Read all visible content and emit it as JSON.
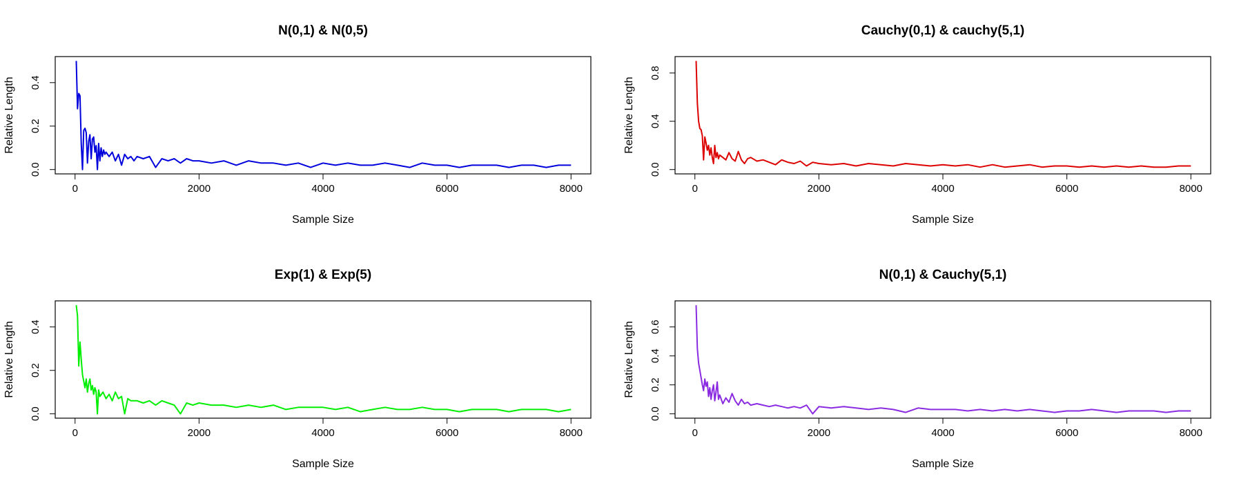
{
  "chart_data": [
    {
      "type": "line",
      "title": "N(0,1) & N(0,5)",
      "xlabel": "Sample Size",
      "ylabel": "Relative Length",
      "xlim": [
        0,
        8000
      ],
      "ylim": [
        0,
        0.5
      ],
      "xticks": [
        0,
        2000,
        4000,
        6000,
        8000
      ],
      "xtick_labels": [
        "0",
        "2000",
        "4000",
        "6000",
        "8000"
      ],
      "yticks": [
        0.0,
        0.2,
        0.4
      ],
      "ytick_labels": [
        "0.0",
        "0.2",
        "0.4"
      ],
      "grid": false,
      "series": [
        {
          "color": "#0000dd",
          "x": [
            20,
            40,
            60,
            80,
            100,
            120,
            140,
            160,
            180,
            200,
            220,
            240,
            260,
            280,
            300,
            320,
            340,
            360,
            380,
            400,
            420,
            440,
            460,
            480,
            500,
            550,
            600,
            650,
            700,
            750,
            800,
            850,
            900,
            950,
            1000,
            1100,
            1200,
            1300,
            1400,
            1500,
            1600,
            1700,
            1800,
            1900,
            2000,
            2200,
            2400,
            2600,
            2800,
            3000,
            3200,
            3400,
            3600,
            3800,
            4000,
            4200,
            4400,
            4600,
            4800,
            5000,
            5200,
            5400,
            5600,
            5800,
            6000,
            6200,
            6400,
            6600,
            6800,
            7000,
            7200,
            7400,
            7600,
            7800,
            8000
          ],
          "y": [
            0.5,
            0.28,
            0.35,
            0.34,
            0.12,
            0.0,
            0.18,
            0.19,
            0.17,
            0.03,
            0.13,
            0.16,
            0.05,
            0.14,
            0.15,
            0.08,
            0.11,
            0.0,
            0.12,
            0.04,
            0.1,
            0.06,
            0.09,
            0.07,
            0.08,
            0.06,
            0.08,
            0.04,
            0.07,
            0.02,
            0.07,
            0.05,
            0.06,
            0.04,
            0.06,
            0.05,
            0.06,
            0.01,
            0.05,
            0.04,
            0.05,
            0.03,
            0.05,
            0.04,
            0.04,
            0.03,
            0.04,
            0.02,
            0.04,
            0.03,
            0.03,
            0.02,
            0.03,
            0.01,
            0.03,
            0.02,
            0.03,
            0.02,
            0.02,
            0.03,
            0.02,
            0.01,
            0.03,
            0.02,
            0.02,
            0.01,
            0.02,
            0.02,
            0.02,
            0.01,
            0.02,
            0.02,
            0.01,
            0.02,
            0.02
          ]
        }
      ]
    },
    {
      "type": "line",
      "title": "Cauchy(0,1) & cauchy(5,1)",
      "xlabel": "Sample Size",
      "ylabel": "Relative Length",
      "xlim": [
        0,
        8000
      ],
      "ylim": [
        0,
        0.9
      ],
      "xticks": [
        0,
        2000,
        4000,
        6000,
        8000
      ],
      "xtick_labels": [
        "0",
        "2000",
        "4000",
        "6000",
        "8000"
      ],
      "yticks": [
        0.0,
        0.4,
        0.8
      ],
      "ytick_labels": [
        "0.0",
        "0.4",
        "0.8"
      ],
      "grid": false,
      "series": [
        {
          "color": "#dd0000",
          "x": [
            20,
            40,
            60,
            80,
            100,
            120,
            140,
            160,
            180,
            200,
            220,
            240,
            260,
            280,
            300,
            320,
            340,
            360,
            380,
            400,
            450,
            500,
            550,
            600,
            650,
            700,
            750,
            800,
            850,
            900,
            1000,
            1100,
            1200,
            1300,
            1400,
            1500,
            1600,
            1700,
            1800,
            1900,
            2000,
            2200,
            2400,
            2600,
            2800,
            3000,
            3200,
            3400,
            3600,
            3800,
            4000,
            4200,
            4400,
            4600,
            4800,
            5000,
            5200,
            5400,
            5600,
            5800,
            6000,
            6200,
            6400,
            6600,
            6800,
            7000,
            7200,
            7400,
            7600,
            7800,
            8000
          ],
          "y": [
            0.9,
            0.55,
            0.4,
            0.34,
            0.33,
            0.28,
            0.08,
            0.27,
            0.22,
            0.16,
            0.2,
            0.12,
            0.18,
            0.1,
            0.05,
            0.2,
            0.1,
            0.14,
            0.09,
            0.12,
            0.1,
            0.08,
            0.14,
            0.09,
            0.07,
            0.15,
            0.08,
            0.05,
            0.09,
            0.1,
            0.07,
            0.08,
            0.06,
            0.04,
            0.08,
            0.06,
            0.05,
            0.07,
            0.03,
            0.06,
            0.05,
            0.04,
            0.05,
            0.03,
            0.05,
            0.04,
            0.03,
            0.05,
            0.04,
            0.03,
            0.04,
            0.03,
            0.04,
            0.02,
            0.04,
            0.02,
            0.03,
            0.04,
            0.02,
            0.03,
            0.03,
            0.02,
            0.03,
            0.02,
            0.03,
            0.02,
            0.03,
            0.02,
            0.02,
            0.03,
            0.03
          ]
        }
      ]
    },
    {
      "type": "line",
      "title": "Exp(1) & Exp(5)",
      "xlabel": "Sample Size",
      "ylabel": "Relative Length",
      "xlim": [
        0,
        8000
      ],
      "ylim": [
        0,
        0.5
      ],
      "xticks": [
        0,
        2000,
        4000,
        6000,
        8000
      ],
      "xtick_labels": [
        "0",
        "2000",
        "4000",
        "6000",
        "8000"
      ],
      "yticks": [
        0.0,
        0.2,
        0.4
      ],
      "ytick_labels": [
        "0.0",
        "0.2",
        "0.4"
      ],
      "grid": false,
      "series": [
        {
          "color": "#00ee00",
          "x": [
            20,
            40,
            60,
            80,
            100,
            120,
            140,
            160,
            180,
            200,
            220,
            240,
            260,
            280,
            300,
            320,
            340,
            360,
            380,
            400,
            450,
            500,
            550,
            600,
            650,
            700,
            750,
            800,
            850,
            900,
            1000,
            1100,
            1200,
            1300,
            1400,
            1500,
            1600,
            1700,
            1800,
            1900,
            2000,
            2200,
            2400,
            2600,
            2800,
            3000,
            3200,
            3400,
            3600,
            3800,
            4000,
            4200,
            4400,
            4600,
            4800,
            5000,
            5200,
            5400,
            5600,
            5800,
            6000,
            6200,
            6400,
            6600,
            6800,
            7000,
            7200,
            7400,
            7600,
            7800,
            8000
          ],
          "y": [
            0.5,
            0.45,
            0.22,
            0.33,
            0.25,
            0.18,
            0.15,
            0.12,
            0.16,
            0.1,
            0.14,
            0.16,
            0.11,
            0.13,
            0.09,
            0.12,
            0.1,
            0.0,
            0.11,
            0.08,
            0.1,
            0.07,
            0.09,
            0.06,
            0.1,
            0.07,
            0.08,
            0.0,
            0.07,
            0.06,
            0.06,
            0.05,
            0.06,
            0.04,
            0.06,
            0.05,
            0.04,
            0.0,
            0.05,
            0.04,
            0.05,
            0.04,
            0.04,
            0.03,
            0.04,
            0.03,
            0.04,
            0.02,
            0.03,
            0.03,
            0.03,
            0.02,
            0.03,
            0.01,
            0.02,
            0.03,
            0.02,
            0.02,
            0.03,
            0.02,
            0.02,
            0.01,
            0.02,
            0.02,
            0.02,
            0.01,
            0.02,
            0.02,
            0.02,
            0.01,
            0.02
          ]
        }
      ]
    },
    {
      "type": "line",
      "title": "N(0,1) & Cauchy(5,1)",
      "xlabel": "Sample Size",
      "ylabel": "Relative Length",
      "xlim": [
        0,
        8000
      ],
      "ylim": [
        0,
        0.75
      ],
      "xticks": [
        0,
        2000,
        4000,
        6000,
        8000
      ],
      "xtick_labels": [
        "0",
        "2000",
        "4000",
        "6000",
        "8000"
      ],
      "yticks": [
        0.0,
        0.2,
        0.4,
        0.6
      ],
      "ytick_labels": [
        "0.0",
        "0.2",
        "0.4",
        "0.6"
      ],
      "grid": false,
      "series": [
        {
          "color": "#8a2be2",
          "x": [
            20,
            40,
            60,
            80,
            100,
            120,
            140,
            160,
            180,
            200,
            220,
            240,
            260,
            280,
            300,
            320,
            340,
            360,
            380,
            400,
            450,
            500,
            550,
            600,
            650,
            700,
            750,
            800,
            850,
            900,
            1000,
            1100,
            1200,
            1300,
            1400,
            1500,
            1600,
            1700,
            1800,
            1900,
            2000,
            2200,
            2400,
            2600,
            2800,
            3000,
            3200,
            3400,
            3600,
            3800,
            4000,
            4200,
            4400,
            4600,
            4800,
            5000,
            5200,
            5400,
            5600,
            5800,
            6000,
            6200,
            6400,
            6600,
            6800,
            7000,
            7200,
            7400,
            7600,
            7800,
            8000
          ],
          "y": [
            0.75,
            0.45,
            0.35,
            0.3,
            0.25,
            0.2,
            0.16,
            0.24,
            0.19,
            0.22,
            0.12,
            0.18,
            0.1,
            0.16,
            0.2,
            0.09,
            0.15,
            0.22,
            0.1,
            0.13,
            0.07,
            0.11,
            0.08,
            0.14,
            0.09,
            0.06,
            0.1,
            0.07,
            0.08,
            0.06,
            0.07,
            0.06,
            0.05,
            0.06,
            0.05,
            0.04,
            0.05,
            0.04,
            0.06,
            0.0,
            0.05,
            0.04,
            0.05,
            0.04,
            0.03,
            0.04,
            0.03,
            0.01,
            0.04,
            0.03,
            0.03,
            0.03,
            0.02,
            0.03,
            0.02,
            0.03,
            0.02,
            0.03,
            0.02,
            0.01,
            0.02,
            0.02,
            0.03,
            0.02,
            0.01,
            0.02,
            0.02,
            0.02,
            0.01,
            0.02,
            0.02
          ]
        }
      ]
    }
  ]
}
